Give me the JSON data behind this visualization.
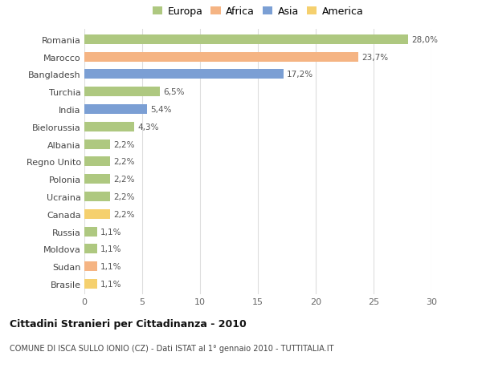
{
  "countries": [
    "Romania",
    "Marocco",
    "Bangladesh",
    "Turchia",
    "India",
    "Bielorussia",
    "Albania",
    "Regno Unito",
    "Polonia",
    "Ucraina",
    "Canada",
    "Russia",
    "Moldova",
    "Sudan",
    "Brasile"
  ],
  "values": [
    28.0,
    23.7,
    17.2,
    6.5,
    5.4,
    4.3,
    2.2,
    2.2,
    2.2,
    2.2,
    2.2,
    1.1,
    1.1,
    1.1,
    1.1
  ],
  "labels": [
    "28,0%",
    "23,7%",
    "17,2%",
    "6,5%",
    "5,4%",
    "4,3%",
    "2,2%",
    "2,2%",
    "2,2%",
    "2,2%",
    "2,2%",
    "1,1%",
    "1,1%",
    "1,1%",
    "1,1%"
  ],
  "continents": [
    "Europa",
    "Africa",
    "Asia",
    "Europa",
    "Asia",
    "Europa",
    "Europa",
    "Europa",
    "Europa",
    "Europa",
    "America",
    "Europa",
    "Europa",
    "Africa",
    "America"
  ],
  "continent_colors": {
    "Europa": "#aec880",
    "Africa": "#f5b483",
    "Asia": "#7b9fd4",
    "America": "#f5d06e"
  },
  "legend_order": [
    "Europa",
    "Africa",
    "Asia",
    "America"
  ],
  "title": "Cittadini Stranieri per Cittadinanza - 2010",
  "subtitle": "COMUNE DI ISCA SULLO IONIO (CZ) - Dati ISTAT al 1° gennaio 2010 - TUTTITALIA.IT",
  "xlim": [
    0,
    30
  ],
  "xticks": [
    0,
    5,
    10,
    15,
    20,
    25,
    30
  ],
  "background_color": "#ffffff",
  "grid_color": "#dddddd",
  "bar_height": 0.55
}
